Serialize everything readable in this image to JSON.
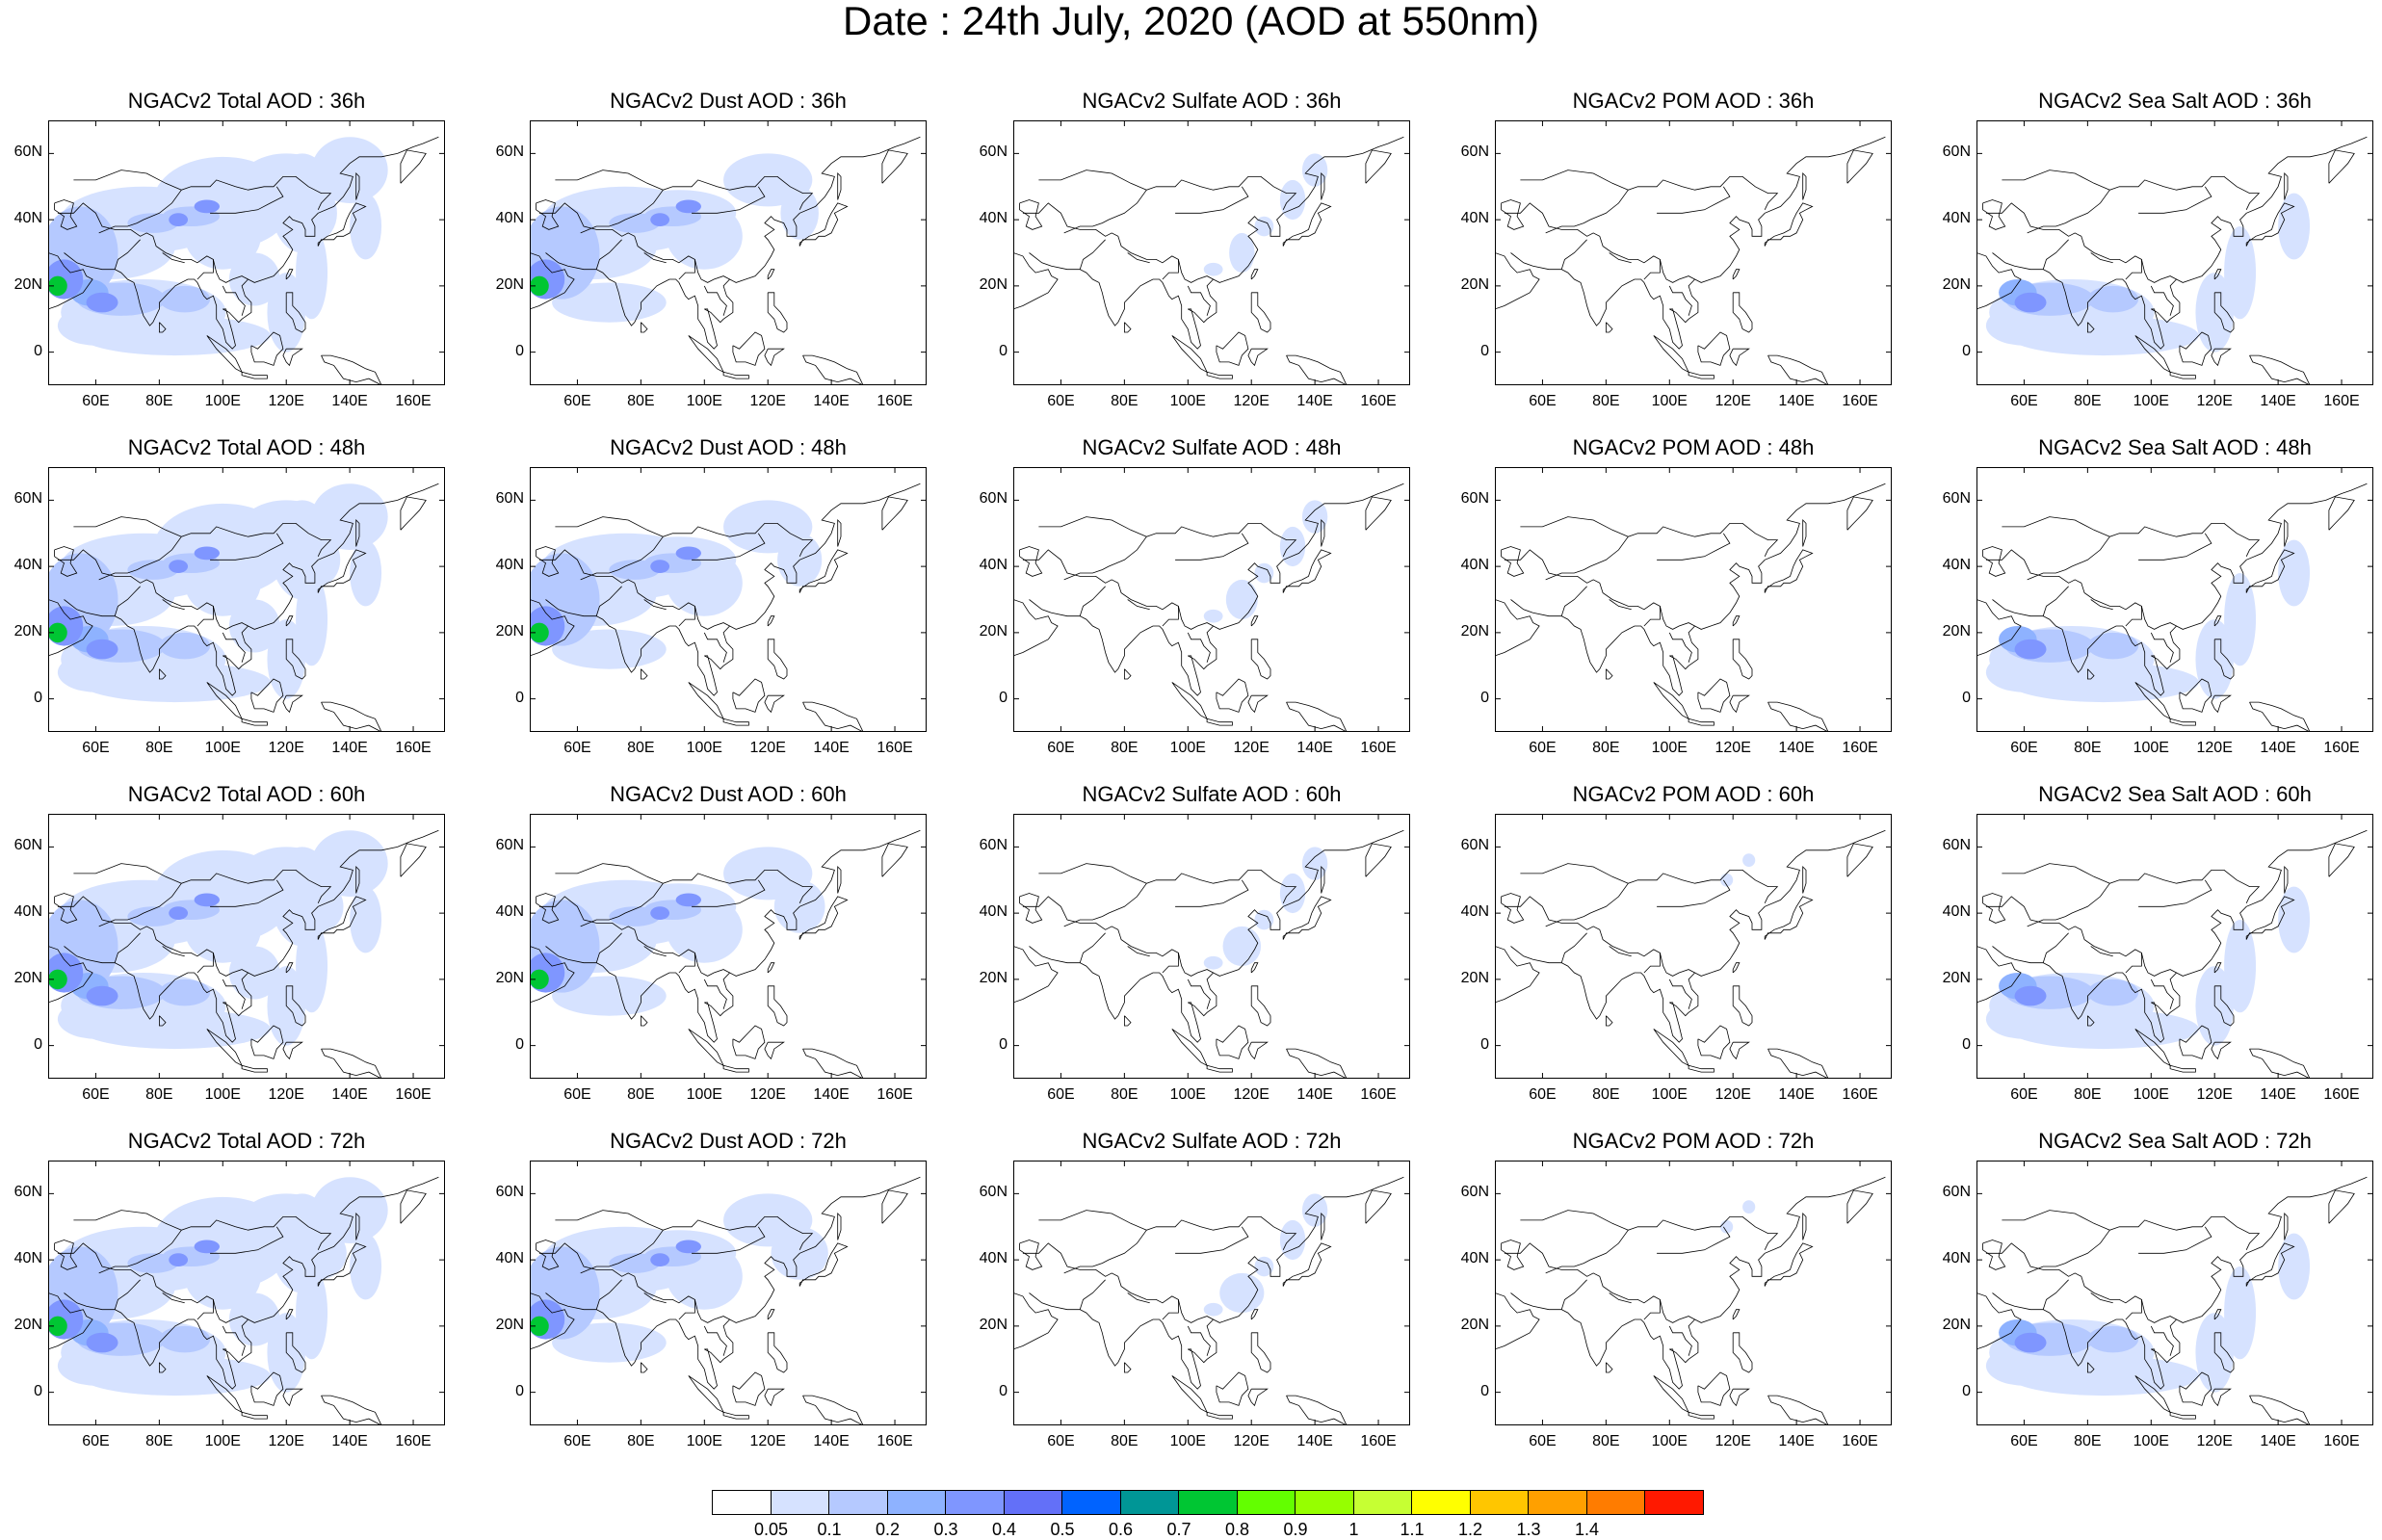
{
  "title": "Date : 24th July, 2020 (AOD at 550nm)",
  "lat_labels": [
    "60N",
    "40N",
    "20N",
    "0"
  ],
  "lon_labels": [
    "60E",
    "80E",
    "100E",
    "120E",
    "140E",
    "160E"
  ],
  "rows": [
    {
      "lead": "36h",
      "titles": [
        "NGACv2 Total AOD : 36h",
        "NGACv2 Dust AOD : 36h",
        "NGACv2 Sulfate AOD : 36h",
        "NGACv2 POM AOD : 36h",
        "NGACv2 Sea Salt AOD : 36h"
      ]
    },
    {
      "lead": "48h",
      "titles": [
        "NGACv2 Total AOD : 48h",
        "NGACv2 Dust AOD : 48h",
        "NGACv2 Sulfate AOD : 48h",
        "NGACv2 POM AOD : 48h",
        "NGACv2 Sea Salt AOD : 48h"
      ]
    },
    {
      "lead": "60h",
      "titles": [
        "NGACv2 Total AOD : 60h",
        "NGACv2 Dust AOD : 60h",
        "NGACv2 Sulfate AOD : 60h",
        "NGACv2 POM AOD : 60h",
        "NGACv2 Sea Salt AOD : 60h"
      ]
    },
    {
      "lead": "72h",
      "titles": [
        "NGACv2 Total AOD : 72h",
        "NGACv2 Dust AOD : 72h",
        "NGACv2 Sulfate AOD : 72h",
        "NGACv2 POM AOD : 72h",
        "NGACv2 Sea Salt  AOD : 72h"
      ]
    }
  ],
  "colorbar": {
    "labels": [
      "0.05",
      "0.1",
      "0.2",
      "0.3",
      "0.4",
      "0.5",
      "0.6",
      "0.7",
      "0.8",
      "0.9",
      "1",
      "1.1",
      "1.2",
      "1.3",
      "1.4"
    ],
    "colors": [
      "#ffffff",
      "#d6e2ff",
      "#b5c9ff",
      "#8eb2ff",
      "#7f96ff",
      "#6370f8",
      "#0063ff",
      "#009696",
      "#00c633",
      "#63ff00",
      "#96ff00",
      "#c6ff33",
      "#ffff00",
      "#ffc600",
      "#ffa000",
      "#ff7c00",
      "#ff1900"
    ]
  },
  "colors": {
    "light": "#d6e2ff",
    "mid": "#b5c9ff",
    "strong": "#8eb2ff",
    "heavy": "#7f96ff",
    "peak": "#00c633",
    "coast": "#000000"
  }
}
